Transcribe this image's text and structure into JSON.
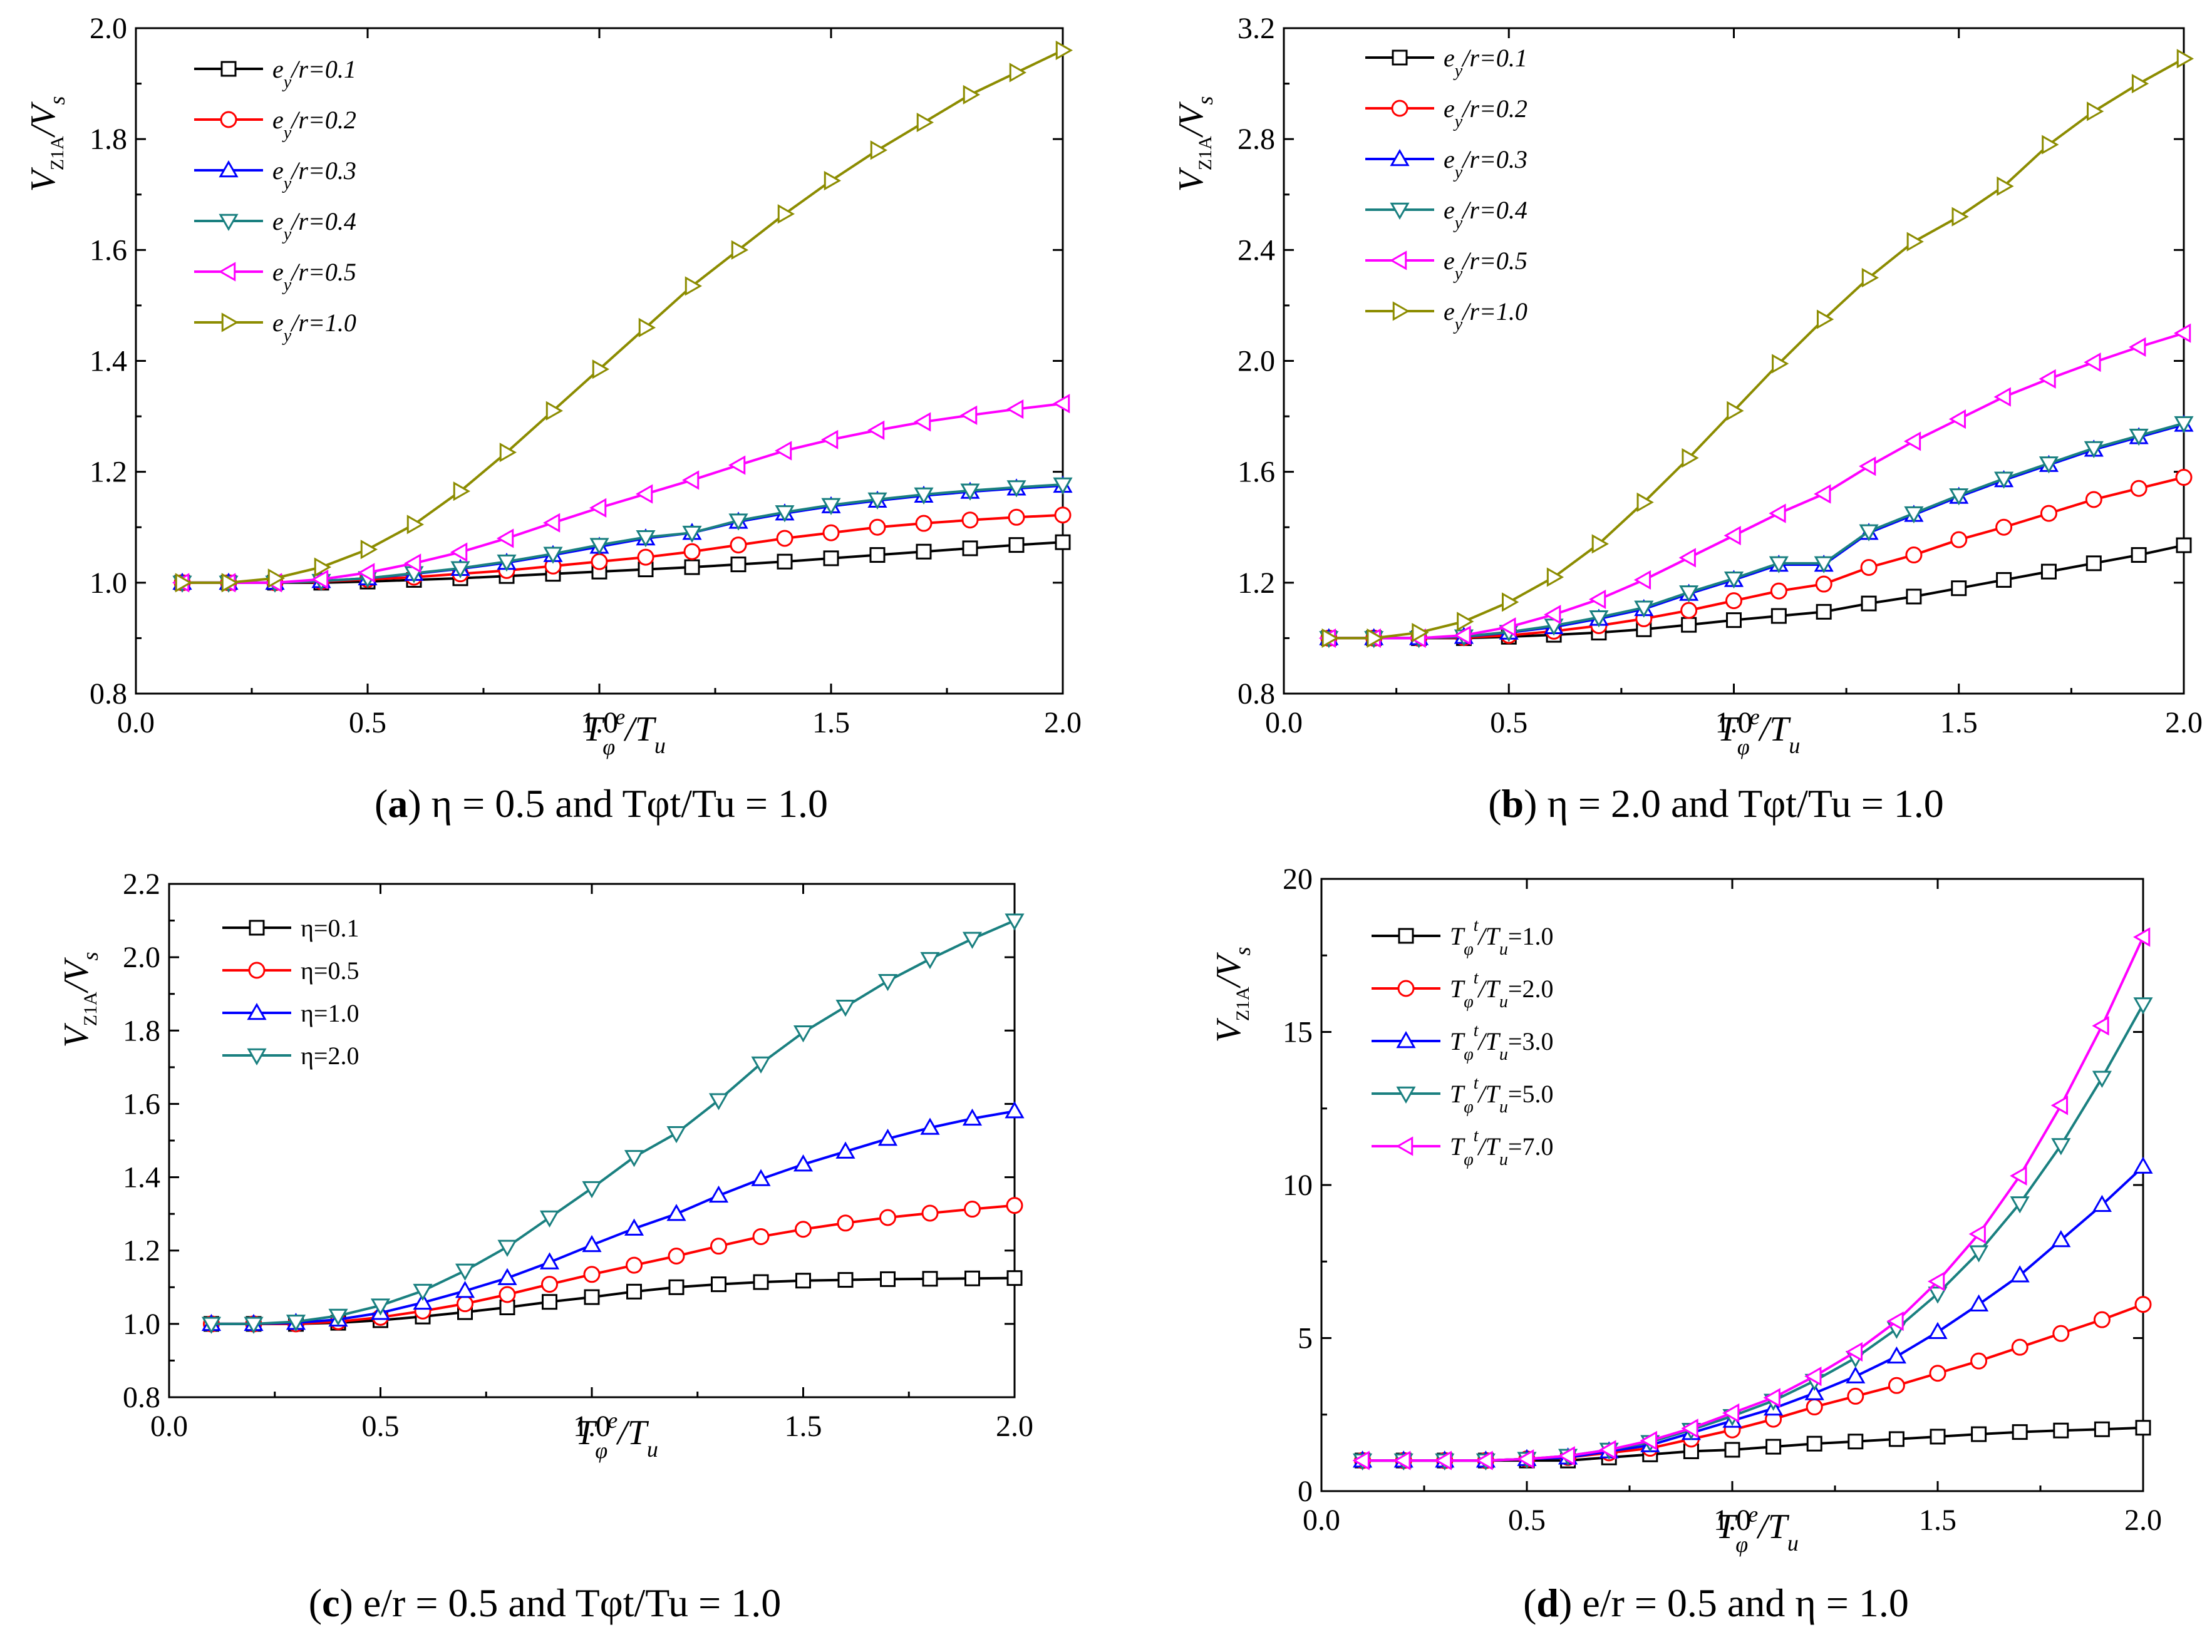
{
  "colors": {
    "s1": "#000000",
    "s2": "#ff0000",
    "s3": "#0000ff",
    "s4": "#1a8080",
    "s5": "#ff00ff",
    "s6": "#8c8c00"
  },
  "chart_data": [
    {
      "type": "line",
      "panel": "a",
      "caption": {
        "letter": "a",
        "text": "η = 0.5 and Tφt/Tu = 1.0"
      },
      "xlabel": {
        "base": "T",
        "sub": "φ",
        "sup": "e",
        "rest": "/T",
        "restsub": "u"
      },
      "ylabel": {
        "base": "V",
        "sub": "Z1A",
        "rest": "/V",
        "restsub": "s"
      },
      "xlim": [
        0.0,
        2.0
      ],
      "ylim": [
        0.8,
        2.0
      ],
      "xticks": [
        "0.0",
        "0.5",
        "1.0",
        "1.5",
        "2.0"
      ],
      "yticks": [
        "0.8",
        "1.0",
        "1.2",
        "1.4",
        "1.6",
        "1.8",
        "2.0"
      ],
      "x": [
        0.1,
        0.2,
        0.3,
        0.4,
        0.5,
        0.6,
        0.7,
        0.8,
        0.9,
        1.0,
        1.1,
        1.2,
        1.3,
        1.4,
        1.5,
        1.6,
        1.7,
        1.8,
        1.9,
        2.0
      ],
      "series": [
        {
          "name": "ey/r=0.1",
          "lead": "e",
          "sub": "y",
          "tail": "/r=0.1",
          "marker": "square",
          "color": "#000000",
          "values": [
            1.0,
            1.0,
            1.0,
            1.0,
            1.002,
            1.005,
            1.008,
            1.012,
            1.016,
            1.02,
            1.024,
            1.028,
            1.033,
            1.038,
            1.044,
            1.05,
            1.056,
            1.062,
            1.068,
            1.073
          ]
        },
        {
          "name": "ey/r=0.2",
          "lead": "e",
          "sub": "y",
          "tail": "/r=0.2",
          "marker": "circle",
          "color": "#ff0000",
          "values": [
            1.0,
            1.0,
            1.0,
            1.002,
            1.006,
            1.01,
            1.016,
            1.022,
            1.03,
            1.038,
            1.046,
            1.056,
            1.068,
            1.08,
            1.09,
            1.1,
            1.107,
            1.113,
            1.118,
            1.122
          ]
        },
        {
          "name": "ey/r=0.3",
          "lead": "e",
          "sub": "y",
          "tail": "/r=0.3",
          "marker": "triangle-up",
          "color": "#0000ff",
          "values": [
            1.0,
            1.0,
            1.0,
            1.003,
            1.008,
            1.016,
            1.025,
            1.036,
            1.05,
            1.065,
            1.08,
            1.09,
            1.11,
            1.125,
            1.138,
            1.148,
            1.157,
            1.164,
            1.17,
            1.175
          ]
        },
        {
          "name": "ey/r=0.4",
          "lead": "e",
          "sub": "y",
          "tail": "/r=0.4",
          "marker": "triangle-down",
          "color": "#1a8080",
          "values": [
            1.0,
            1.0,
            1.0,
            1.003,
            1.008,
            1.017,
            1.026,
            1.038,
            1.052,
            1.068,
            1.082,
            1.09,
            1.112,
            1.127,
            1.14,
            1.15,
            1.159,
            1.166,
            1.172,
            1.177
          ]
        },
        {
          "name": "ey/r=0.5",
          "lead": "e",
          "sub": "y",
          "tail": "/r=0.5",
          "marker": "triangle-left",
          "color": "#ff00ff",
          "values": [
            1.0,
            1.0,
            1.0,
            1.006,
            1.018,
            1.035,
            1.055,
            1.08,
            1.108,
            1.135,
            1.16,
            1.185,
            1.212,
            1.238,
            1.258,
            1.275,
            1.29,
            1.302,
            1.313,
            1.323
          ]
        },
        {
          "name": "ey/r=1.0",
          "lead": "e",
          "sub": "y",
          "tail": "/r=1.0",
          "marker": "triangle-right",
          "color": "#8c8c00",
          "values": [
            1.0,
            1.0,
            1.008,
            1.028,
            1.06,
            1.105,
            1.165,
            1.235,
            1.31,
            1.385,
            1.46,
            1.535,
            1.6,
            1.665,
            1.725,
            1.78,
            1.83,
            1.88,
            1.92,
            1.96
          ]
        }
      ]
    },
    {
      "type": "line",
      "panel": "b",
      "caption": {
        "letter": "b",
        "text": "η = 2.0 and Tφt/Tu = 1.0"
      },
      "xlabel": {
        "base": "T",
        "sub": "φ",
        "sup": "e",
        "rest": "/T",
        "restsub": "u"
      },
      "ylabel": {
        "base": "V",
        "sub": "Z1A",
        "rest": "/V",
        "restsub": "s"
      },
      "xlim": [
        0.0,
        2.0
      ],
      "ylim": [
        0.8,
        3.2
      ],
      "xticks": [
        "0.0",
        "0.5",
        "1.0",
        "1.5",
        "2.0"
      ],
      "yticks": [
        "0.8",
        "1.2",
        "1.6",
        "2.0",
        "2.4",
        "2.8",
        "3.2"
      ],
      "x": [
        0.1,
        0.2,
        0.3,
        0.4,
        0.5,
        0.6,
        0.7,
        0.8,
        0.9,
        1.0,
        1.1,
        1.2,
        1.3,
        1.4,
        1.5,
        1.6,
        1.7,
        1.8,
        1.9,
        2.0
      ],
      "series": [
        {
          "name": "ey/r=0.1",
          "lead": "e",
          "sub": "y",
          "tail": "/r=0.1",
          "marker": "square",
          "color": "#000000",
          "values": [
            1.0,
            1.0,
            1.0,
            1.0,
            1.005,
            1.012,
            1.02,
            1.032,
            1.048,
            1.065,
            1.08,
            1.095,
            1.125,
            1.15,
            1.18,
            1.21,
            1.24,
            1.27,
            1.3,
            1.335
          ]
        },
        {
          "name": "ey/r=0.2",
          "lead": "e",
          "sub": "y",
          "tail": "/r=0.2",
          "marker": "circle",
          "color": "#ff0000",
          "values": [
            1.0,
            1.0,
            1.0,
            1.002,
            1.01,
            1.025,
            1.045,
            1.07,
            1.1,
            1.135,
            1.17,
            1.195,
            1.255,
            1.3,
            1.355,
            1.4,
            1.45,
            1.5,
            1.54,
            1.58
          ]
        },
        {
          "name": "ey/r=0.3",
          "lead": "e",
          "sub": "y",
          "tail": "/r=0.3",
          "marker": "triangle-up",
          "color": "#0000ff",
          "values": [
            1.0,
            1.0,
            1.0,
            1.005,
            1.02,
            1.04,
            1.07,
            1.105,
            1.16,
            1.21,
            1.265,
            1.265,
            1.38,
            1.445,
            1.51,
            1.57,
            1.625,
            1.68,
            1.725,
            1.77
          ]
        },
        {
          "name": "ey/r=0.4",
          "lead": "e",
          "sub": "y",
          "tail": "/r=0.4",
          "marker": "triangle-down",
          "color": "#1a8080",
          "values": [
            1.0,
            1.0,
            1.0,
            1.006,
            1.022,
            1.045,
            1.075,
            1.11,
            1.165,
            1.215,
            1.27,
            1.27,
            1.385,
            1.45,
            1.515,
            1.575,
            1.63,
            1.685,
            1.73,
            1.775
          ]
        },
        {
          "name": "ey/r=0.5",
          "lead": "e",
          "sub": "y",
          "tail": "/r=0.5",
          "marker": "triangle-left",
          "color": "#ff00ff",
          "values": [
            1.0,
            1.0,
            1.0,
            1.01,
            1.04,
            1.085,
            1.14,
            1.21,
            1.29,
            1.37,
            1.45,
            1.52,
            1.62,
            1.71,
            1.79,
            1.87,
            1.935,
            1.995,
            2.05,
            2.1
          ]
        },
        {
          "name": "ey/r=1.0",
          "lead": "e",
          "sub": "y",
          "tail": "/r=1.0",
          "marker": "triangle-right",
          "color": "#8c8c00",
          "values": [
            1.0,
            1.0,
            1.02,
            1.06,
            1.13,
            1.22,
            1.34,
            1.49,
            1.65,
            1.82,
            1.99,
            2.15,
            2.3,
            2.43,
            2.52,
            2.63,
            2.78,
            2.9,
            3.0,
            3.09
          ]
        }
      ]
    },
    {
      "type": "line",
      "panel": "c",
      "caption": {
        "letter": "c",
        "text": "e/r = 0.5 and Tφt/Tu = 1.0"
      },
      "xlabel": {
        "base": "T",
        "sub": "φ",
        "sup": "e",
        "rest": "/T",
        "restsub": "u"
      },
      "ylabel": {
        "base": "V",
        "sub": "Z1A",
        "rest": "/V",
        "restsub": "s"
      },
      "xlim": [
        0.0,
        2.0
      ],
      "ylim": [
        0.8,
        2.2
      ],
      "xticks": [
        "0.0",
        "0.5",
        "1.0",
        "1.5",
        "2.0"
      ],
      "yticks": [
        "0.8",
        "1.0",
        "1.2",
        "1.4",
        "1.6",
        "1.8",
        "2.0",
        "2.2"
      ],
      "x": [
        0.1,
        0.2,
        0.3,
        0.4,
        0.5,
        0.6,
        0.7,
        0.8,
        0.9,
        1.0,
        1.1,
        1.2,
        1.3,
        1.4,
        1.5,
        1.6,
        1.7,
        1.8,
        1.9,
        2.0
      ],
      "series": [
        {
          "name": "η=0.1",
          "lead": "η=0.1",
          "sub": "",
          "tail": "",
          "marker": "square",
          "color": "#000000",
          "values": [
            1.0,
            1.0,
            1.0,
            1.003,
            1.01,
            1.02,
            1.032,
            1.045,
            1.06,
            1.073,
            1.088,
            1.1,
            1.108,
            1.114,
            1.118,
            1.12,
            1.122,
            1.123,
            1.124,
            1.125
          ]
        },
        {
          "name": "η=0.5",
          "lead": "η=0.5",
          "sub": "",
          "tail": "",
          "marker": "circle",
          "color": "#ff0000",
          "values": [
            1.0,
            1.0,
            1.0,
            1.006,
            1.018,
            1.035,
            1.055,
            1.08,
            1.108,
            1.135,
            1.16,
            1.185,
            1.212,
            1.238,
            1.258,
            1.275,
            1.29,
            1.302,
            1.313,
            1.323
          ]
        },
        {
          "name": "η=1.0",
          "lead": "η=1.0",
          "sub": "",
          "tail": "",
          "marker": "triangle-up",
          "color": "#0000ff",
          "values": [
            1.0,
            1.0,
            1.003,
            1.012,
            1.03,
            1.058,
            1.09,
            1.125,
            1.168,
            1.215,
            1.26,
            1.3,
            1.35,
            1.395,
            1.435,
            1.47,
            1.505,
            1.535,
            1.56,
            1.58
          ]
        },
        {
          "name": "η=2.0",
          "lead": "η=2.0",
          "sub": "",
          "tail": "",
          "marker": "triangle-down",
          "color": "#1a8080",
          "values": [
            1.0,
            1.0,
            1.006,
            1.022,
            1.05,
            1.09,
            1.145,
            1.21,
            1.29,
            1.37,
            1.455,
            1.52,
            1.61,
            1.71,
            1.795,
            1.865,
            1.935,
            1.995,
            2.05,
            2.1
          ]
        }
      ]
    },
    {
      "type": "line",
      "panel": "d",
      "caption": {
        "letter": "d",
        "text": "e/r = 0.5 and η = 1.0"
      },
      "xlabel": {
        "base": "T",
        "sub": "φ",
        "sup": "e",
        "rest": "/T",
        "restsub": "u"
      },
      "ylabel": {
        "base": "V",
        "sub": "Z1A",
        "rest": "/V",
        "restsub": "s"
      },
      "xlim": [
        0.0,
        2.0
      ],
      "ylim": [
        0,
        20
      ],
      "xticks": [
        "0.0",
        "0.5",
        "1.0",
        "1.5",
        "2.0"
      ],
      "yticks": [
        "0",
        "5",
        "10",
        "15",
        "20"
      ],
      "x": [
        0.1,
        0.2,
        0.3,
        0.4,
        0.5,
        0.6,
        0.7,
        0.8,
        0.9,
        1.0,
        1.1,
        1.2,
        1.3,
        1.4,
        1.5,
        1.6,
        1.7,
        1.8,
        1.9,
        2.0
      ],
      "series": [
        {
          "name": "Tφt/Tu=1.0",
          "lead": "T",
          "sub": "φ",
          "sup": "t",
          "tail": "/T",
          "tailsub": "u",
          "end": "=1.0",
          "marker": "square",
          "color": "#000000",
          "values": [
            1.0,
            1.0,
            1.0,
            1.0,
            1.0,
            1.0,
            1.1,
            1.2,
            1.3,
            1.35,
            1.45,
            1.55,
            1.62,
            1.7,
            1.78,
            1.86,
            1.93,
            1.98,
            2.02,
            2.07
          ]
        },
        {
          "name": "Tφt/Tu=2.0",
          "lead": "T",
          "sub": "φ",
          "sup": "t",
          "tail": "/T",
          "tailsub": "u",
          "end": "=2.0",
          "marker": "circle",
          "color": "#ff0000",
          "values": [
            1.0,
            1.0,
            1.0,
            1.0,
            1.05,
            1.1,
            1.25,
            1.4,
            1.7,
            2.0,
            2.35,
            2.75,
            3.1,
            3.45,
            3.85,
            4.25,
            4.7,
            5.15,
            5.6,
            6.1
          ]
        },
        {
          "name": "Tφt/Tu=3.0",
          "lead": "T",
          "sub": "φ",
          "sup": "t",
          "tail": "/T",
          "tailsub": "u",
          "end": "=3.0",
          "marker": "triangle-up",
          "color": "#0000ff",
          "values": [
            1.0,
            1.0,
            1.0,
            1.0,
            1.05,
            1.1,
            1.3,
            1.5,
            1.9,
            2.3,
            2.7,
            3.2,
            3.75,
            4.4,
            5.2,
            6.1,
            7.05,
            8.2,
            9.35,
            10.6
          ]
        },
        {
          "name": "Tφt/Tu=5.0",
          "lead": "T",
          "sub": "φ",
          "sup": "t",
          "tail": "/T",
          "tailsub": "u",
          "end": "=5.0",
          "marker": "triangle-down",
          "color": "#1a8080",
          "values": [
            1.0,
            1.0,
            1.0,
            1.0,
            1.05,
            1.15,
            1.35,
            1.6,
            2.0,
            2.45,
            2.95,
            3.6,
            4.35,
            5.3,
            6.45,
            7.8,
            9.4,
            11.3,
            13.5,
            15.9
          ]
        },
        {
          "name": "Tφt/Tu=7.0",
          "lead": "T",
          "sub": "φ",
          "sup": "t",
          "tail": "/T",
          "tailsub": "u",
          "end": "=7.0",
          "marker": "triangle-left",
          "color": "#ff00ff",
          "values": [
            1.0,
            1.0,
            1.0,
            1.0,
            1.05,
            1.15,
            1.35,
            1.65,
            2.05,
            2.55,
            3.05,
            3.75,
            4.55,
            5.55,
            6.85,
            8.4,
            10.3,
            12.6,
            15.2,
            18.1
          ]
        }
      ]
    }
  ]
}
